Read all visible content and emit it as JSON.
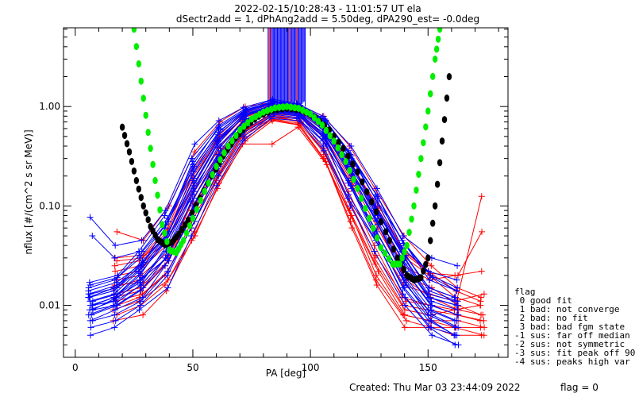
{
  "chart_data": {
    "type": "line",
    "title_line1": "2022-02-15/10:28:43 - 11:01:57 UT ela",
    "title_line2": "dSectr2add = 1, dPhAng2add = 5.50deg, dPA290_est=  -0.0deg",
    "xlabel": "PA [deg]",
    "ylabel": "nflux [#/(cm^2 s sr MeV)]",
    "xlim": [
      -5,
      184
    ],
    "ylim": [
      0.003,
      6.2
    ],
    "yscale": "log",
    "x_ticks": [
      0,
      50,
      100,
      150
    ],
    "x_tick_labels": [
      "0",
      "50",
      "100",
      "150"
    ],
    "y_ticks": [
      0.01,
      0.1,
      1.0
    ],
    "y_tick_labels": [
      "0.01",
      "0.10",
      "1.00"
    ],
    "grid": false,
    "legend_position": "right-outside",
    "legend": {
      "title": "flag",
      "entries": [
        " 0 good fit",
        " 1 bad: not converge",
        " 2 bad: no fit",
        " 3 bad: bad fgm state",
        "-1 sus: far off median",
        "-2 sus: not symmetric",
        "-3 sus: fit peak off 90",
        "-4 sus: peaks high var"
      ]
    },
    "footer": {
      "created": "Created: Thu Mar 03 23:44:09 2022",
      "flag": "flag = 0"
    },
    "pa_bins": [
      6.5,
      17,
      28,
      39,
      50,
      61,
      72,
      84,
      95,
      106,
      117,
      128,
      140,
      151,
      162,
      173
    ],
    "series_colors": {
      "blue": "#0000ff",
      "red": "#ff0000",
      "green_fit": "#00ee00",
      "black_fit": "#000000"
    },
    "blue_traces": [
      [
        0.01,
        0.012,
        0.02,
        0.05,
        0.18,
        0.45,
        0.8,
        1.05,
        0.95,
        0.6,
        0.25,
        0.09,
        0.03,
        0.012,
        0.01,
        null
      ],
      [
        0.008,
        0.01,
        0.016,
        0.04,
        0.15,
        0.4,
        0.75,
        0.98,
        0.92,
        0.55,
        0.22,
        0.07,
        0.022,
        0.01,
        0.008,
        null
      ],
      [
        0.012,
        0.015,
        0.025,
        0.06,
        0.22,
        0.52,
        0.85,
        1.1,
        1.0,
        0.68,
        0.3,
        0.11,
        0.035,
        0.015,
        0.012,
        null
      ],
      [
        0.009,
        0.011,
        0.018,
        0.03,
        0.1,
        0.3,
        0.65,
        0.9,
        0.85,
        0.5,
        0.18,
        0.06,
        0.018,
        0.008,
        0.006,
        null
      ],
      [
        0.015,
        0.018,
        0.03,
        0.07,
        0.28,
        0.6,
        0.92,
        1.12,
        1.02,
        0.72,
        0.33,
        0.12,
        0.04,
        0.018,
        0.014,
        null
      ],
      [
        0.007,
        0.009,
        0.012,
        0.025,
        0.08,
        0.25,
        0.58,
        0.86,
        0.8,
        0.45,
        0.15,
        0.05,
        0.015,
        0.007,
        0.005,
        null
      ],
      [
        0.011,
        0.013,
        0.022,
        0.045,
        0.16,
        0.42,
        0.78,
        1.0,
        0.93,
        0.58,
        0.24,
        0.08,
        0.026,
        0.011,
        0.009,
        null
      ],
      [
        0.013,
        0.016,
        0.028,
        0.055,
        0.2,
        0.48,
        0.82,
        1.04,
        0.96,
        0.62,
        0.27,
        0.1,
        0.032,
        0.014,
        0.011,
        null
      ],
      [
        0.006,
        0.007,
        0.01,
        0.02,
        0.06,
        0.2,
        0.5,
        0.8,
        0.75,
        0.4,
        0.12,
        0.04,
        0.012,
        0.006,
        0.004,
        null
      ],
      [
        0.01,
        0.012,
        0.019,
        0.038,
        0.13,
        0.36,
        0.7,
        0.95,
        0.88,
        0.52,
        0.2,
        0.07,
        0.02,
        0.009,
        0.007,
        null
      ],
      [
        0.017,
        0.02,
        0.035,
        0.08,
        0.3,
        0.65,
        0.95,
        1.15,
        1.05,
        0.75,
        0.36,
        0.13,
        0.045,
        0.02,
        0.015,
        null
      ],
      [
        0.008,
        0.01,
        0.014,
        0.028,
        0.09,
        0.28,
        0.62,
        0.88,
        0.82,
        0.48,
        0.16,
        0.055,
        0.016,
        0.008,
        0.006,
        null
      ],
      [
        0.012,
        0.014,
        0.024,
        0.05,
        0.17,
        0.44,
        0.8,
        1.02,
        0.94,
        0.6,
        0.26,
        0.09,
        0.028,
        0.012,
        0.01,
        null
      ],
      [
        0.009,
        0.012,
        0.017,
        0.035,
        0.12,
        0.33,
        0.68,
        0.93,
        0.87,
        0.51,
        0.19,
        0.065,
        0.019,
        0.009,
        0.007,
        null
      ],
      [
        0.014,
        0.017,
        0.027,
        0.06,
        0.24,
        0.55,
        0.88,
        1.08,
        0.99,
        0.66,
        0.29,
        0.1,
        0.034,
        0.015,
        0.012,
        null
      ],
      [
        0.005,
        0.006,
        0.009,
        0.015,
        0.05,
        0.16,
        0.45,
        0.76,
        0.72,
        0.36,
        0.1,
        0.035,
        0.01,
        0.005,
        0.004,
        null
      ],
      [
        0.077,
        0.04,
        0.045,
        0.09,
        0.42,
        0.72,
        0.98,
        1.18,
        1.08,
        0.8,
        0.4,
        0.15,
        0.05,
        0.03,
        0.025,
        null
      ],
      [
        0.05,
        0.03,
        0.035,
        0.075,
        0.25,
        0.58,
        0.9,
        1.1,
        1.0,
        0.7,
        0.32,
        0.12,
        0.038,
        0.022,
        0.018,
        null
      ],
      [
        0.011,
        0.013,
        0.021,
        0.042,
        0.14,
        0.39,
        0.74,
        0.97,
        0.9,
        0.54,
        0.21,
        0.075,
        0.024,
        0.01,
        0.008,
        null
      ],
      [
        0.01,
        0.011,
        0.016,
        0.032,
        0.11,
        0.31,
        0.66,
        0.91,
        0.86,
        0.49,
        0.17,
        0.058,
        0.017,
        0.008,
        0.006,
        null
      ],
      [
        0.013,
        0.015,
        0.026,
        0.052,
        0.19,
        0.46,
        0.83,
        1.03,
        0.95,
        0.61,
        0.26,
        0.095,
        0.03,
        0.013,
        0.011,
        null
      ],
      [
        0.007,
        0.008,
        0.011,
        0.022,
        0.07,
        0.22,
        0.54,
        0.83,
        0.78,
        0.42,
        0.13,
        0.045,
        0.013,
        0.006,
        0.005,
        null
      ],
      [
        0.016,
        0.019,
        0.032,
        0.065,
        0.26,
        0.62,
        0.93,
        1.13,
        1.03,
        0.73,
        0.34,
        0.125,
        0.042,
        0.019,
        0.014,
        null
      ],
      [
        0.009,
        0.01,
        0.015,
        0.03,
        0.1,
        0.29,
        0.64,
        0.89,
        0.84,
        0.47,
        0.16,
        0.052,
        0.015,
        0.007,
        0.005,
        null
      ]
    ],
    "red_traces": [
      [
        null,
        0.055,
        0.045,
        0.1,
        0.35,
        0.7,
        1.0,
        1.1,
        1.05,
        0.8,
        0.4,
        0.15,
        0.05,
        0.025,
        0.015,
        0.012
      ],
      [
        null,
        0.02,
        0.022,
        0.04,
        0.14,
        0.38,
        0.72,
        0.96,
        0.9,
        0.55,
        0.2,
        0.07,
        0.02,
        0.015,
        0.01,
        0.008
      ],
      [
        null,
        0.015,
        0.018,
        0.03,
        0.1,
        0.3,
        0.6,
        0.85,
        0.8,
        0.45,
        0.14,
        0.04,
        0.012,
        0.01,
        0.008,
        0.007
      ],
      [
        null,
        0.012,
        0.014,
        0.025,
        0.08,
        0.25,
        0.55,
        0.8,
        0.72,
        0.35,
        0.1,
        0.03,
        0.01,
        0.009,
        0.008,
        0.007
      ],
      [
        null,
        0.025,
        0.028,
        0.05,
        0.18,
        0.45,
        0.8,
        1.0,
        0.95,
        0.62,
        0.25,
        0.09,
        0.03,
        0.02,
        0.012,
        0.01
      ],
      [
        null,
        0.01,
        0.012,
        0.02,
        0.06,
        0.2,
        0.5,
        0.75,
        0.68,
        0.3,
        0.08,
        0.022,
        0.008,
        0.007,
        0.006,
        0.005
      ],
      [
        null,
        0.018,
        0.02,
        0.035,
        0.12,
        0.34,
        0.68,
        0.92,
        0.86,
        0.5,
        0.18,
        0.06,
        0.018,
        0.012,
        0.009,
        0.008
      ],
      [
        null,
        0.008,
        0.01,
        0.016,
        0.05,
        0.17,
        0.45,
        0.72,
        0.65,
        0.28,
        0.07,
        0.018,
        0.007,
        0.006,
        0.005,
        0.005
      ],
      [
        null,
        0.03,
        0.032,
        0.06,
        0.22,
        0.52,
        0.86,
        1.05,
        0.98,
        0.66,
        0.28,
        0.1,
        0.035,
        0.022,
        0.014,
        0.011
      ],
      [
        null,
        0.013,
        0.015,
        0.028,
        0.09,
        0.28,
        0.58,
        0.82,
        0.75,
        0.38,
        0.11,
        0.032,
        0.011,
        0.01,
        0.009,
        0.01
      ],
      [
        null,
        0.022,
        0.025,
        0.045,
        0.16,
        0.42,
        0.76,
        0.98,
        0.92,
        0.58,
        0.22,
        0.08,
        0.025,
        0.018,
        0.02,
        0.022
      ],
      [
        null,
        0.009,
        0.011,
        0.018,
        0.055,
        0.18,
        0.48,
        0.74,
        0.66,
        0.3,
        0.08,
        0.02,
        0.008,
        0.007,
        0.007,
        0.006
      ],
      [
        null,
        0.016,
        0.017,
        0.032,
        0.11,
        0.32,
        0.64,
        0.88,
        0.82,
        0.47,
        0.16,
        0.05,
        0.016,
        0.013,
        0.011,
        0.013
      ],
      [
        null,
        0.011,
        0.013,
        0.022,
        0.07,
        0.22,
        0.52,
        0.78,
        0.7,
        0.33,
        0.09,
        0.026,
        0.009,
        0.008,
        0.009,
        0.125
      ],
      [
        null,
        0.028,
        0.03,
        0.055,
        0.2,
        0.48,
        0.84,
        1.02,
        0.96,
        0.64,
        0.26,
        0.095,
        0.032,
        0.021,
        0.02,
        0.055
      ],
      [
        null,
        0.007,
        0.008,
        0.014,
        0.045,
        0.15,
        0.42,
        0.42,
        0.62,
        0.26,
        0.06,
        0.016,
        0.006,
        0.006,
        0.006,
        0.006
      ]
    ],
    "green_fit": {
      "name": "fit (green)",
      "pa": [
        25,
        28,
        31,
        34,
        37,
        40,
        43,
        46,
        50,
        55,
        60,
        65,
        70,
        75,
        80,
        85,
        90,
        95,
        100,
        105,
        110,
        115,
        120,
        125,
        130,
        135,
        138,
        141,
        144,
        147,
        150,
        153,
        155
      ],
      "values": [
        6.0,
        1.8,
        0.55,
        0.18,
        0.065,
        0.036,
        0.034,
        0.045,
        0.075,
        0.14,
        0.25,
        0.4,
        0.58,
        0.75,
        0.88,
        0.97,
        1.0,
        0.96,
        0.84,
        0.65,
        0.45,
        0.28,
        0.15,
        0.075,
        0.038,
        0.026,
        0.026,
        0.04,
        0.1,
        0.3,
        0.9,
        3.0,
        6.0
      ]
    },
    "black_fit": {
      "name": "fit (black)",
      "pa": [
        20,
        23,
        26,
        29,
        32,
        35,
        38,
        41,
        44,
        48,
        53,
        58,
        63,
        68,
        73,
        78,
        84,
        90,
        96,
        102,
        108,
        114,
        120,
        126,
        132,
        137,
        141,
        144,
        147,
        150,
        153,
        156,
        159
      ],
      "values": [
        0.62,
        0.35,
        0.18,
        0.1,
        0.062,
        0.046,
        0.041,
        0.043,
        0.052,
        0.072,
        0.12,
        0.2,
        0.32,
        0.48,
        0.65,
        0.8,
        0.92,
        0.96,
        0.92,
        0.78,
        0.58,
        0.38,
        0.22,
        0.11,
        0.055,
        0.03,
        0.02,
        0.018,
        0.019,
        0.03,
        0.1,
        0.45,
        2.0
      ]
    },
    "vertical_band": {
      "pa_range": [
        82,
        98
      ],
      "value_from": 1.15,
      "note": "many traces exceed plot top near 90 deg"
    }
  }
}
